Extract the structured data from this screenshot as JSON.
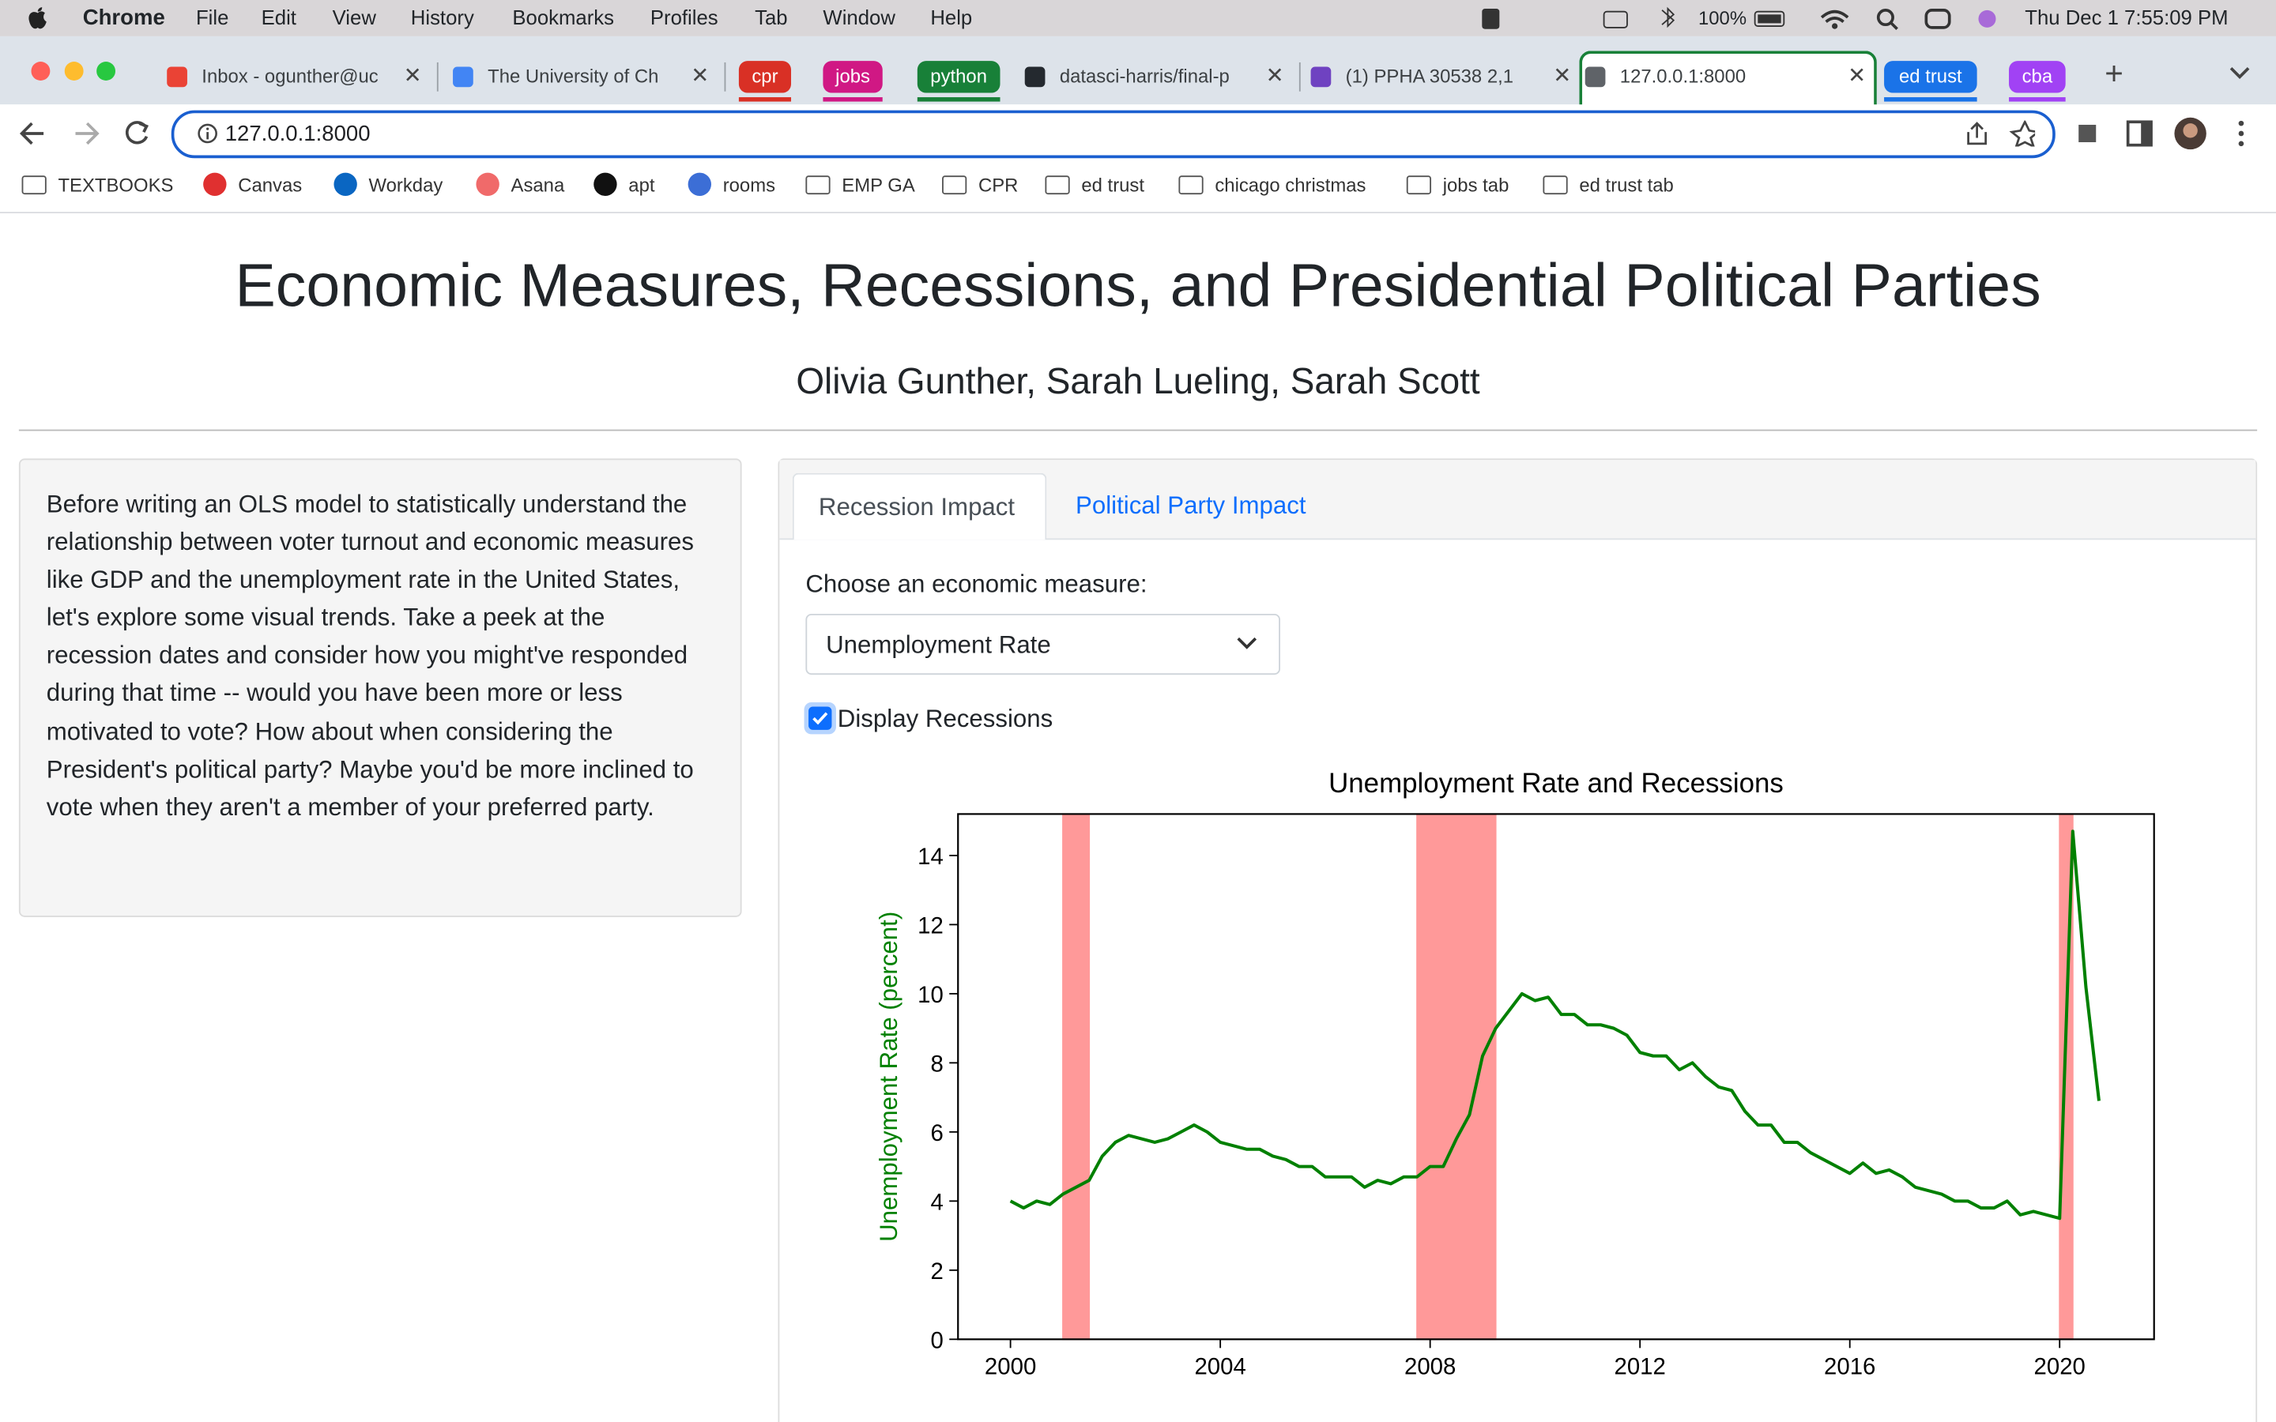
{
  "menu_bar": {
    "app": "Chrome",
    "menus": [
      "File",
      "Edit",
      "View",
      "History",
      "Bookmarks",
      "Profiles",
      "Tab",
      "Window",
      "Help"
    ],
    "battery": "100%",
    "datetime": "Thu Dec 1  7:55:09 PM"
  },
  "tabs": [
    "Inbox - ogunther@uc",
    "The University of Ch",
    "cpr",
    "jobs",
    "python",
    "datasci-harris/final-p",
    "(1) PPHA 30538 2,1",
    "127.0.0.1:8000",
    "ed trust",
    "cba"
  ],
  "address_bar": "127.0.0.1:8000",
  "bookmarks": [
    "TEXTBOOKS",
    "Canvas",
    "Workday",
    "Asana",
    "apt",
    "rooms",
    "EMP GA",
    "CPR",
    "ed trust",
    "chicago christmas",
    "jobs tab",
    "ed trust tab"
  ],
  "app": {
    "title": "Economic Measures, Recessions, and Presidential Political Parties",
    "authors": "Olivia Gunther, Sarah Lueling, Sarah Scott",
    "sidebar_text": "Before writing an OLS model to statistically understand the relationship between voter turnout and economic measures like GDP and the unemployment rate in the United States, let's explore some visual trends. Take a peek at the recession dates and consider how you might've responded during that time -- would you have been more or less motivated to vote? How about when considering the President's political party? Maybe you'd be more inclined to vote when they aren't a member of your preferred party.",
    "nav_tabs": [
      "Recession Impact",
      "Political Party Impact"
    ],
    "select_label": "Choose an economic measure:",
    "select_value": "Unemployment Rate",
    "checkbox_label": "Display Recessions",
    "checkbox_checked": true
  },
  "chart_data": {
    "type": "line",
    "title": "Unemployment Rate and Recessions",
    "y_label": "Unemployment Rate (percent)",
    "x": [
      2000,
      2000.25,
      2000.5,
      2000.75,
      2001,
      2001.25,
      2001.5,
      2001.75,
      2002,
      2002.25,
      2002.5,
      2002.75,
      2003,
      2003.25,
      2003.5,
      2003.75,
      2004,
      2004.25,
      2004.5,
      2004.75,
      2005,
      2005.25,
      2005.5,
      2005.75,
      2006,
      2006.25,
      2006.5,
      2006.75,
      2007,
      2007.25,
      2007.5,
      2007.75,
      2008,
      2008.25,
      2008.5,
      2008.75,
      2009,
      2009.25,
      2009.5,
      2009.75,
      2010,
      2010.25,
      2010.5,
      2010.75,
      2011,
      2011.25,
      2011.5,
      2011.75,
      2012,
      2012.25,
      2012.5,
      2012.75,
      2013,
      2013.25,
      2013.5,
      2013.75,
      2014,
      2014.25,
      2014.5,
      2014.75,
      2015,
      2015.25,
      2015.5,
      2015.75,
      2016,
      2016.25,
      2016.5,
      2016.75,
      2017,
      2017.25,
      2017.5,
      2017.75,
      2018,
      2018.25,
      2018.5,
      2018.75,
      2019,
      2019.25,
      2019.5,
      2019.75,
      2020,
      2020.25,
      2020.5,
      2020.75
    ],
    "values": [
      4.0,
      3.8,
      4.0,
      3.9,
      4.2,
      4.4,
      4.6,
      5.3,
      5.7,
      5.9,
      5.8,
      5.7,
      5.8,
      6.0,
      6.2,
      6.0,
      5.7,
      5.6,
      5.5,
      5.5,
      5.3,
      5.2,
      5.0,
      5.0,
      4.7,
      4.7,
      4.7,
      4.4,
      4.6,
      4.5,
      4.7,
      4.7,
      5.0,
      5.0,
      5.8,
      6.5,
      8.2,
      9.0,
      9.5,
      10.0,
      9.8,
      9.9,
      9.4,
      9.4,
      9.1,
      9.1,
      9.0,
      8.8,
      8.3,
      8.2,
      8.2,
      7.8,
      8.0,
      7.6,
      7.3,
      7.2,
      6.6,
      6.2,
      6.2,
      5.7,
      5.7,
      5.4,
      5.2,
      5.0,
      4.8,
      5.1,
      4.8,
      4.9,
      4.7,
      4.4,
      4.3,
      4.2,
      4.0,
      4.0,
      3.8,
      3.8,
      4.0,
      3.6,
      3.7,
      3.6,
      3.5,
      14.7,
      10.2,
      6.9
    ],
    "color": "#008000",
    "recessions": [
      {
        "start": 2001.0,
        "end": 2001.5
      },
      {
        "start": 2007.75,
        "end": 2009.25
      },
      {
        "start": 2020.0,
        "end": 2020.25
      }
    ],
    "recession_color": "#ff9999",
    "xlim": [
      1999.0,
      2021.8
    ],
    "xticks": [
      2000,
      2004,
      2008,
      2012,
      2016,
      2020
    ],
    "ylim": [
      0,
      15.2
    ],
    "yticks": [
      0,
      2,
      4,
      6,
      8,
      10,
      12,
      14
    ]
  }
}
